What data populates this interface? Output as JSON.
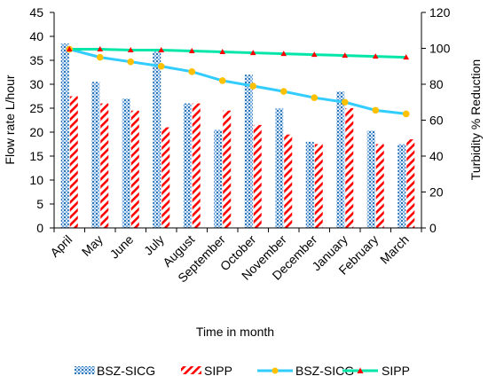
{
  "chart_data": {
    "type": "bar+line",
    "categories": [
      "April",
      "May",
      "June",
      "July",
      "August",
      "September",
      "October",
      "November",
      "December",
      "January",
      "February",
      "March"
    ],
    "bar_series": [
      {
        "name": "BSZ-SICG",
        "axis": "left",
        "color": "#5b9bd5",
        "values": [
          38.5,
          30.5,
          27,
          37,
          26,
          20.5,
          32,
          25,
          18,
          28.5,
          20.3,
          17.5
        ]
      },
      {
        "name": "SIPP",
        "axis": "left",
        "color": "#ff0000",
        "values": [
          27.5,
          26,
          24.5,
          21,
          26,
          24.5,
          21.5,
          19.5,
          17.5,
          25,
          17.5,
          18.5
        ]
      }
    ],
    "line_series": [
      {
        "name": "BSZ-SICG",
        "axis": "right",
        "color": "#33ccff",
        "marker": "circle",
        "marker_color": "#ffc000",
        "values": [
          99.5,
          95,
          92.5,
          90,
          87,
          82,
          79,
          76,
          72.5,
          70,
          65.5,
          63.5
        ]
      },
      {
        "name": "SIPP",
        "axis": "right",
        "color": "#00e6a8",
        "marker": "triangle",
        "marker_color": "#ff0000",
        "values": [
          99.5,
          99.5,
          99,
          99,
          98.5,
          98,
          97.5,
          97,
          96.5,
          96,
          95.5,
          95
        ]
      }
    ],
    "left_axis": {
      "label": "Flow rate L/hour",
      "min": 0,
      "max": 45,
      "step": 5,
      "ticks": [
        "0",
        "5",
        "10",
        "15",
        "20",
        "25",
        "30",
        "35",
        "40",
        "45"
      ]
    },
    "right_axis": {
      "label": "Turbidity % Reduction",
      "min": 0,
      "max": 120,
      "step": 20,
      "ticks": [
        "0",
        "20",
        "40",
        "60",
        "80",
        "100",
        "120"
      ]
    },
    "xlabel": "Time in month",
    "grid": false,
    "legend": "bottom"
  }
}
